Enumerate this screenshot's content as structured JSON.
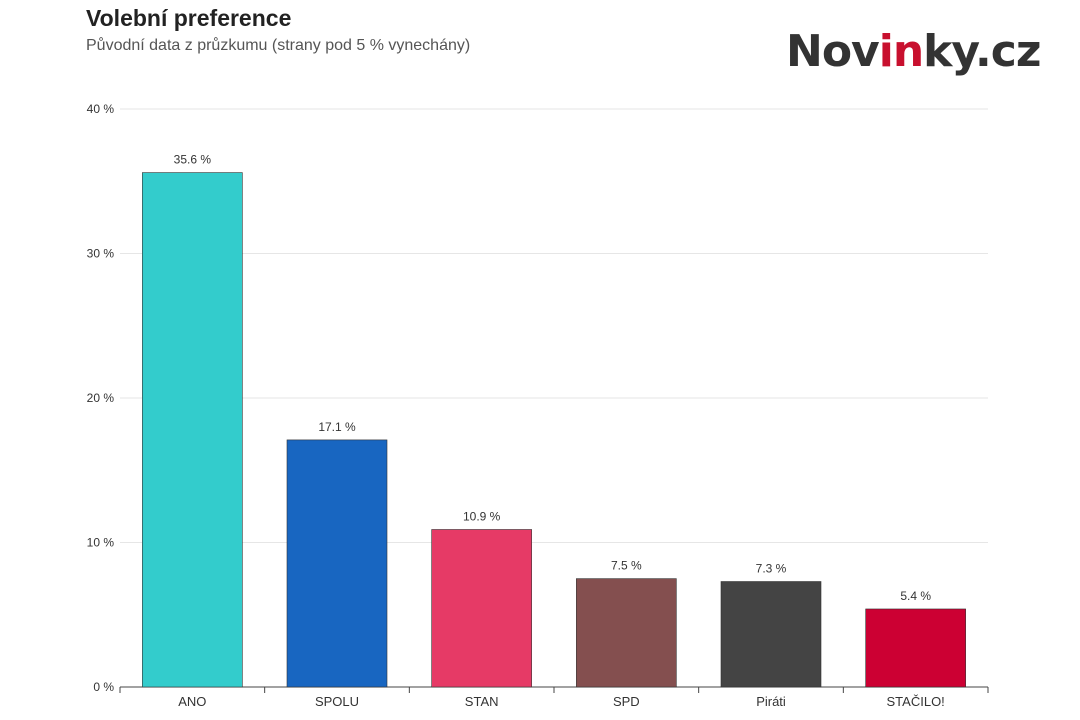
{
  "title": "Volební preference",
  "subtitle": "Původní data z průzkumu (strany pod 5 % vynechány)",
  "logo": {
    "text_pre": "Nov",
    "text_accent": "in",
    "text_post": "ky.cz",
    "accent_color": "#c8102e"
  },
  "chart_data": {
    "type": "bar",
    "title": "Volební preference",
    "subtitle": "Původní data z průzkumu (strany pod 5 % vynechány)",
    "categories": [
      "ANO",
      "SPOLU",
      "STAN",
      "SPD",
      "Piráti",
      "STAČILO!"
    ],
    "values": [
      35.6,
      17.1,
      10.9,
      7.5,
      7.3,
      5.4
    ],
    "value_labels": [
      "35.6 %",
      "17.1 %",
      "10.9 %",
      "7.5 %",
      "7.3 %",
      "5.4 %"
    ],
    "colors": [
      "#33cccc",
      "#1866c1",
      "#e63a66",
      "#844f4f",
      "#444444",
      "#cc0033"
    ],
    "ylim": [
      0,
      40
    ],
    "yticks": [
      0,
      10,
      20,
      30,
      40
    ],
    "ytick_labels": [
      "0 %",
      "10 %",
      "20 %",
      "30 %",
      "40 %"
    ],
    "xlabel": "",
    "ylabel": "",
    "grid": true,
    "legend": "none"
  }
}
